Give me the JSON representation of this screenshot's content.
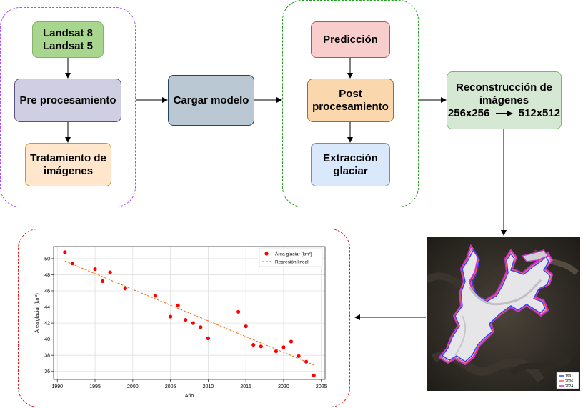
{
  "colors": {
    "left_group": "#a64dff",
    "mid_group": "#1a9b1a",
    "chart_group": "#e01414",
    "landsat": {
      "fill": "#a8d68e",
      "stroke": "#82b366"
    },
    "pre": {
      "fill": "#d0cee2",
      "stroke": "#56517e"
    },
    "tratamiento": {
      "fill": "#ffe6cc",
      "stroke": "#d79b00"
    },
    "cargar": {
      "fill": "#bac8d3",
      "stroke": "#23445d"
    },
    "prediccion": {
      "fill": "#f8cecc",
      "stroke": "#b85450"
    },
    "post": {
      "fill": "#fad7ac",
      "stroke": "#b46504"
    },
    "extraccion": {
      "fill": "#dae8fc",
      "stroke": "#6c8ebf"
    },
    "reconstruccion": {
      "fill": "#d5e8d4",
      "stroke": "#82b366"
    }
  },
  "nodes": {
    "landsat": "Landsat 8\nLandsat 5",
    "pre_procesamiento": "Pre procesamiento",
    "tratamiento": "Tratamiento de\nimágenes",
    "cargar_modelo": "Cargar modelo",
    "prediccion": "Predicción",
    "post_procesamiento": "Post\nprocesamiento",
    "extraccion": "Extracción\nglaciar",
    "reconstruccion_title": "Reconstrucción de\nimágenes",
    "reconstruccion_from": "256x256",
    "reconstruccion_to": "512x512"
  },
  "satellite_legend": [
    {
      "label": "1991",
      "color": "#3040ff"
    },
    {
      "label": "2006",
      "color": "#ff5a5a"
    },
    {
      "label": "2024",
      "color": "#c832c8"
    }
  ],
  "chart_data": {
    "type": "scatter",
    "xlabel": "Año",
    "ylabel": "Área glaciar (km²)",
    "xlim": [
      1989.5,
      2025.5
    ],
    "ylim": [
      35,
      51.5
    ],
    "xticks": [
      1990,
      1995,
      2000,
      2005,
      2010,
      2015,
      2020,
      2025
    ],
    "yticks": [
      36,
      38,
      40,
      42,
      44,
      46,
      48,
      50
    ],
    "grid": true,
    "legend_position": "top-right",
    "series": [
      {
        "name": "Área glaciar (km²)",
        "kind": "scatter",
        "color": "#ff0000",
        "points": [
          [
            1991,
            50.8
          ],
          [
            1992,
            49.4
          ],
          [
            1995,
            48.7
          ],
          [
            1996,
            47.2
          ],
          [
            1997,
            48.3
          ],
          [
            1999,
            46.3
          ],
          [
            2003,
            45.4
          ],
          [
            2005,
            42.8
          ],
          [
            2006,
            44.2
          ],
          [
            2007,
            42.4
          ],
          [
            2008,
            42.0
          ],
          [
            2009,
            41.5
          ],
          [
            2010,
            40.1
          ],
          [
            2014,
            43.4
          ],
          [
            2015,
            41.6
          ],
          [
            2016,
            39.3
          ],
          [
            2017,
            39.1
          ],
          [
            2019,
            38.5
          ],
          [
            2020,
            39.0
          ],
          [
            2021,
            39.7
          ],
          [
            2022,
            37.9
          ],
          [
            2023,
            37.2
          ],
          [
            2024,
            35.5
          ]
        ]
      },
      {
        "name": "Regresión lineal",
        "kind": "line",
        "style": "dashed",
        "color": "#ff6600",
        "points": [
          [
            1991,
            49.7
          ],
          [
            2024,
            36.8
          ]
        ]
      }
    ]
  }
}
